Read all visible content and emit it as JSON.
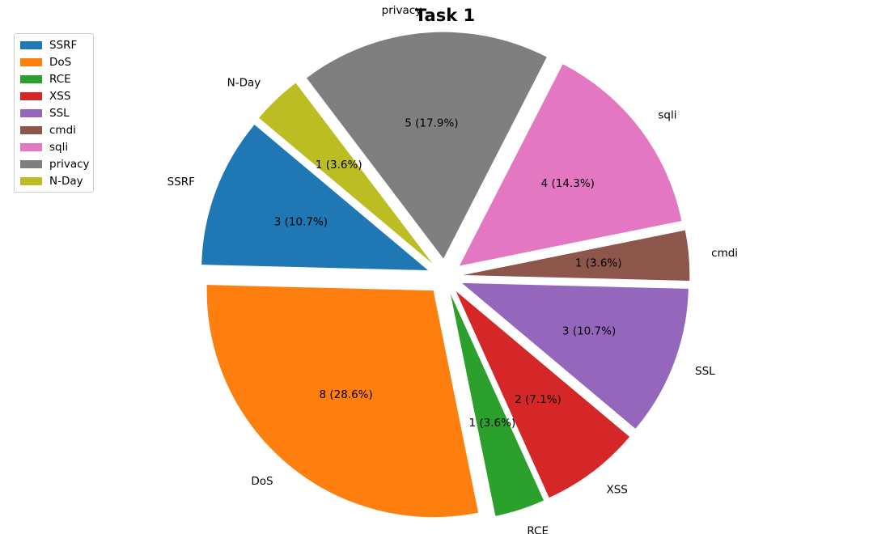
{
  "chart_data": {
    "type": "pie",
    "title": "Task 1",
    "legend_position": "top-left",
    "slices": [
      {
        "label": "SSRF",
        "value": 3,
        "autopct": "3 (10.7%)",
        "color": "#1f77b4"
      },
      {
        "label": "DoS",
        "value": 8,
        "autopct": "8 (28.6%)",
        "color": "#ff7f0e"
      },
      {
        "label": "RCE",
        "value": 1,
        "autopct": "1 (3.6%)",
        "color": "#2ca02c"
      },
      {
        "label": "XSS",
        "value": 2,
        "autopct": "2 (7.1%)",
        "color": "#d62728"
      },
      {
        "label": "SSL",
        "value": 3,
        "autopct": "3 (10.7%)",
        "color": "#9467bd"
      },
      {
        "label": "cmdi",
        "value": 1,
        "autopct": "1 (3.6%)",
        "color": "#8c564b"
      },
      {
        "label": "sqli",
        "value": 4,
        "autopct": "4 (14.3%)",
        "color": "#e377c2"
      },
      {
        "label": "privacy",
        "value": 5,
        "autopct": "5 (17.9%)",
        "color": "#7f7f7f"
      },
      {
        "label": "N-Day",
        "value": 1,
        "autopct": "1 (3.6%)",
        "color": "#bcbd22"
      }
    ]
  }
}
